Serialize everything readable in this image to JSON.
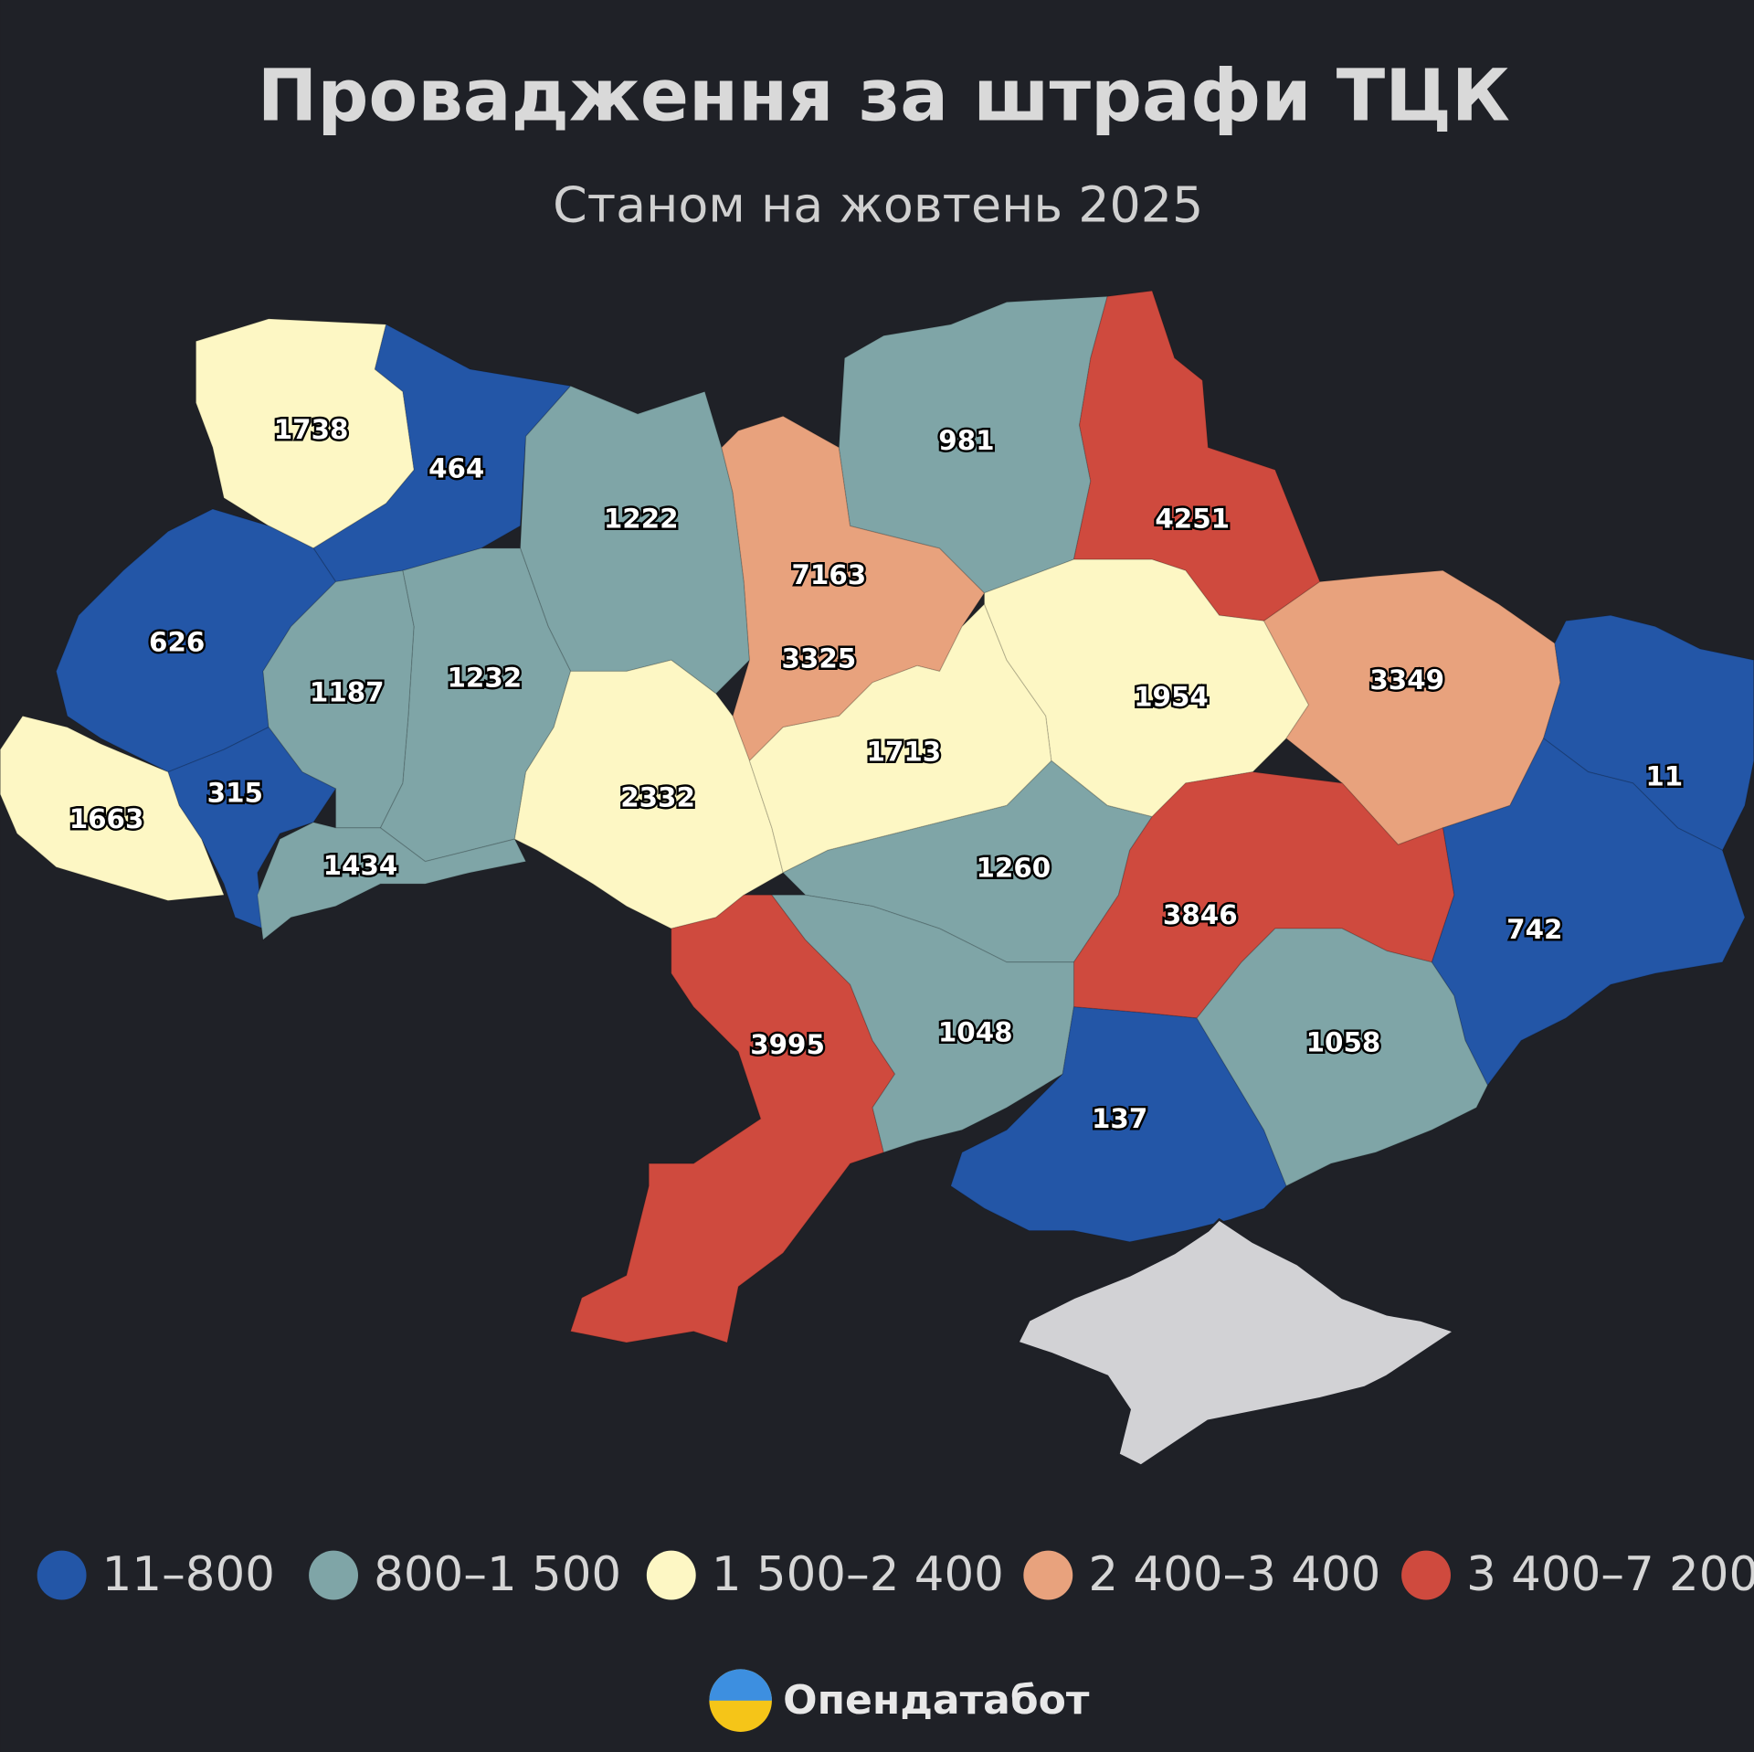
{
  "title": "Провадження за штрафи ТЦК",
  "subtitle": "Станом на жовтень 2025",
  "regions": [
    1738,
    464,
    1222,
    7163,
    3325,
    981,
    4251,
    626,
    1187,
    1232,
    315,
    1663,
    1434,
    2332,
    1713,
    1954,
    3349,
    11,
    742,
    1260,
    3846,
    3995,
    1048,
    137,
    1058
  ],
  "legend": [
    {
      "label": "11–800",
      "range": [
        11,
        800
      ],
      "color": "#2356a7"
    },
    {
      "label": "800–1 500",
      "range": [
        800,
        1500
      ],
      "color": "#7fa5a7"
    },
    {
      "label": "1 500–2 400",
      "range": [
        1500,
        2400
      ],
      "color": "#fdf7c4"
    },
    {
      "label": "2 400–3 400",
      "range": [
        2400,
        3400
      ],
      "color": "#e8a27d"
    },
    {
      "label": "3 400–7 200",
      "range": [
        3400,
        7200
      ],
      "color": "#cf4a3e"
    }
  ],
  "source": "Опендатабот"
}
